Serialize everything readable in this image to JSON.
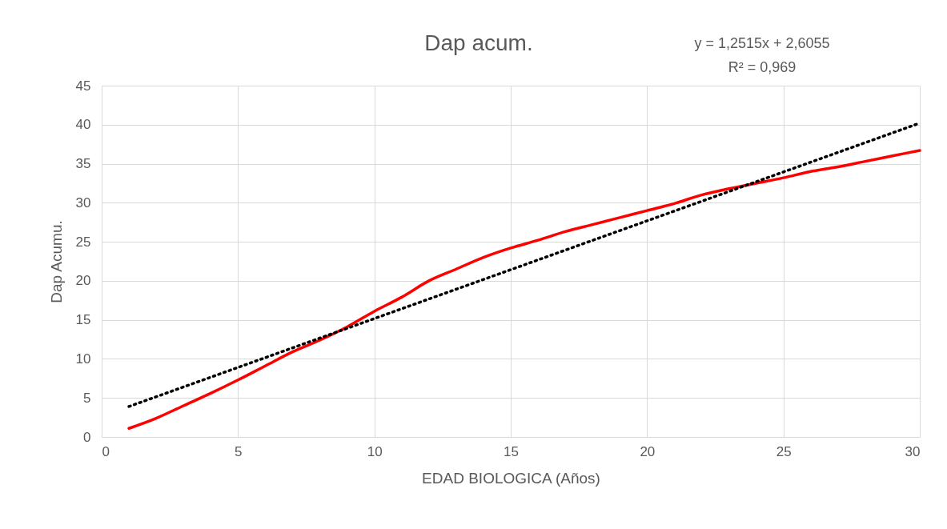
{
  "chart_data": {
    "type": "line",
    "title": "Dap acum.",
    "xlabel": "EDAD BIOLOGICA (Años)",
    "ylabel": "Dap Acumu.",
    "x": [
      1,
      2,
      3,
      4,
      5,
      6,
      7,
      8,
      9,
      10,
      11,
      12,
      13,
      14,
      15,
      16,
      17,
      18,
      19,
      20,
      21,
      22,
      23,
      24,
      25,
      26,
      27,
      28,
      29,
      30
    ],
    "series": [
      {
        "color": "#ff0000",
        "values": [
          1.1,
          2.4,
          4.0,
          5.6,
          7.3,
          9.1,
          10.9,
          12.4,
          14.1,
          16.1,
          17.9,
          20.0,
          21.5,
          23.0,
          24.2,
          25.2,
          26.3,
          27.2,
          28.1,
          29.0,
          29.9,
          31.0,
          31.8,
          32.5,
          33.2,
          34.0,
          34.6,
          35.3,
          36.0,
          36.7
        ]
      },
      {
        "type": "line",
        "x": [
          1,
          30
        ],
        "color": "#000000",
        "line_style": "dotted",
        "values": [
          3.9,
          40.2
        ]
      }
    ],
    "annotations": [
      "y = 1,2515x + 2,6055",
      "R² = 0,969"
    ],
    "xlim": [
      0,
      30
    ],
    "xticks": [
      0,
      5,
      10,
      15,
      20,
      25,
      30
    ],
    "ylim": [
      0,
      45
    ],
    "yticks": [
      0,
      5,
      10,
      15,
      20,
      25,
      30,
      35,
      40,
      45
    ],
    "grid": true,
    "marker": "none",
    "line_style": "solid"
  }
}
